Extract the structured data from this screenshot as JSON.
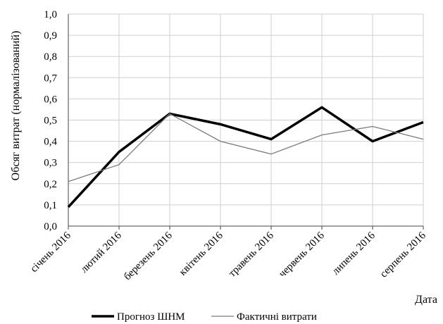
{
  "chart_data": {
    "type": "line",
    "title": "",
    "xlabel": "Дата",
    "ylabel": "Обсяг витрат (нормалізований)",
    "categories": [
      "січень 2016",
      "лютий 2016",
      "березень 2016",
      "квітень 2016",
      "травень 2016",
      "червень 2016",
      "липень 2016",
      "серпень 2016"
    ],
    "ylim": [
      0,
      1
    ],
    "yticks": [
      "0,0",
      "0,1",
      "0,2",
      "0,3",
      "0,4",
      "0,5",
      "0,6",
      "0,7",
      "0,8",
      "0,9",
      "1,0"
    ],
    "grid": true,
    "legend_position": "bottom",
    "series": [
      {
        "name": "Прогноз ШНМ",
        "values": [
          0.09,
          0.35,
          0.53,
          0.48,
          0.41,
          0.56,
          0.4,
          0.49
        ],
        "color": "#000000",
        "style": "thick"
      },
      {
        "name": "Фактичні витрати",
        "values": [
          0.21,
          0.29,
          0.53,
          0.4,
          0.34,
          0.43,
          0.47,
          0.41
        ],
        "color": "#7a7a7a",
        "style": "thin"
      }
    ]
  }
}
